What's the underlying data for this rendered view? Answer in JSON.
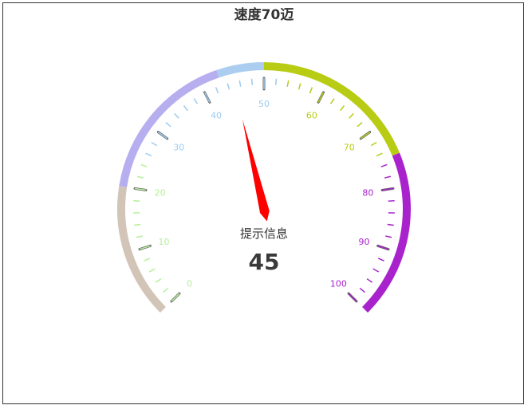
{
  "chart_data": {
    "type": "gauge",
    "title": "速度70迈",
    "min": 0,
    "max": 100,
    "value": 45,
    "detail_label": "提示信息",
    "detail_value": "45",
    "major_ticks": [
      0,
      10,
      20,
      30,
      40,
      50,
      60,
      70,
      80,
      90,
      100
    ],
    "bands": [
      {
        "from": 0,
        "to": 20,
        "color": "#d3c4b8"
      },
      {
        "from": 20,
        "to": 43,
        "color": "#b7aef0"
      },
      {
        "from": 43,
        "to": 50,
        "color": "#abcef0"
      },
      {
        "from": 50,
        "to": 75,
        "color": "#b8cc14"
      },
      {
        "from": 75,
        "to": 100,
        "color": "#a923cc"
      }
    ],
    "tick_colors": [
      {
        "from": 0,
        "to": 25,
        "color": "#b5ef9a"
      },
      {
        "from": 25,
        "to": 52,
        "color": "#9ecbf0"
      },
      {
        "from": 52,
        "to": 75,
        "color": "#b8cc14"
      },
      {
        "from": 75,
        "to": 100,
        "color": "#a923cc"
      }
    ],
    "pointer_color": "#ff0000"
  }
}
